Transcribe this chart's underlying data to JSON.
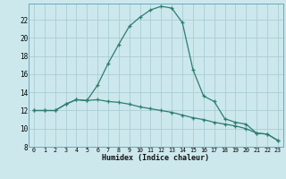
{
  "xlabel": "Humidex (Indice chaleur)",
  "background_color": "#cce8ed",
  "grid_color": "#aacdd4",
  "line_color": "#2e7d6e",
  "xlim": [
    -0.5,
    23.5
  ],
  "ylim": [
    8,
    23.8
  ],
  "xtick_labels": [
    "0",
    "1",
    "2",
    "3",
    "4",
    "5",
    "6",
    "7",
    "8",
    "9",
    "10",
    "11",
    "12",
    "13",
    "14",
    "15",
    "16",
    "17",
    "18",
    "19",
    "20",
    "21",
    "22",
    "23"
  ],
  "ytick_values": [
    8,
    10,
    12,
    14,
    16,
    18,
    20,
    22
  ],
  "line1_x": [
    0,
    1,
    2,
    3,
    4,
    5,
    6,
    7,
    8,
    9,
    10,
    11,
    12,
    13,
    14,
    15,
    16,
    17,
    18,
    19,
    20,
    21,
    22,
    23
  ],
  "line1_y": [
    12.0,
    12.0,
    12.0,
    12.7,
    13.2,
    13.1,
    13.2,
    13.0,
    12.9,
    12.7,
    12.4,
    12.2,
    12.0,
    11.8,
    11.5,
    11.2,
    11.0,
    10.7,
    10.5,
    10.3,
    10.0,
    9.5,
    9.4,
    8.7
  ],
  "line2_x": [
    0,
    1,
    2,
    3,
    4,
    5,
    6,
    7,
    8,
    9,
    10,
    11,
    12,
    13,
    14,
    15,
    16,
    17,
    18,
    19,
    20,
    21,
    22,
    23
  ],
  "line2_y": [
    12.0,
    12.0,
    12.0,
    12.7,
    13.2,
    13.1,
    14.8,
    17.2,
    19.3,
    21.3,
    22.3,
    23.1,
    23.5,
    23.3,
    21.7,
    16.5,
    13.6,
    13.0,
    11.1,
    10.7,
    10.5,
    9.5,
    9.4,
    8.7
  ]
}
